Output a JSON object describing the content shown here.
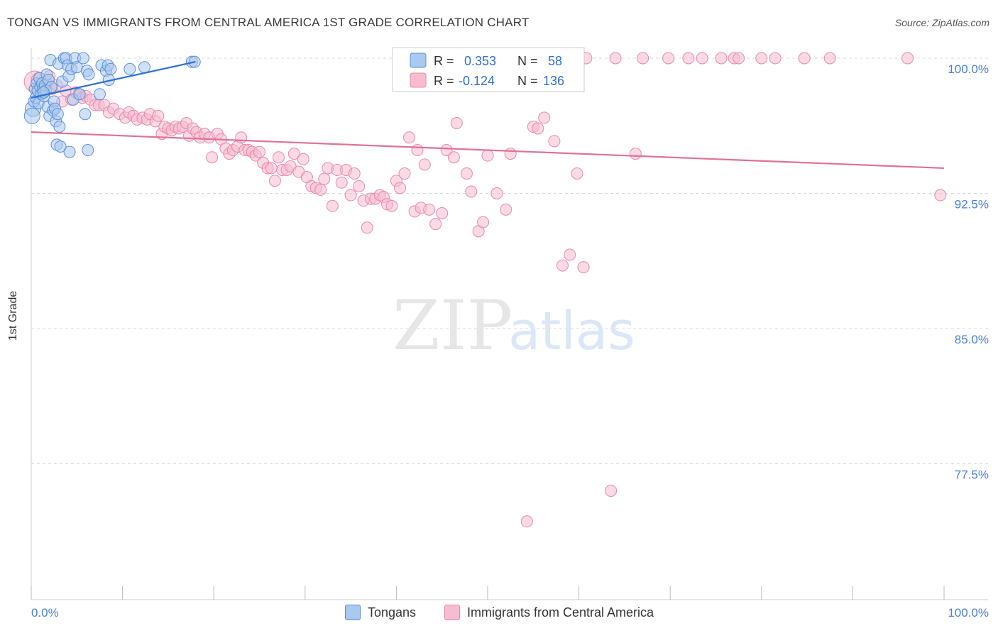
{
  "title": "TONGAN VS IMMIGRANTS FROM CENTRAL AMERICA 1ST GRADE CORRELATION CHART",
  "source": "Source: ZipAtlas.com",
  "watermark": {
    "zip": "ZIP",
    "atlas": "atlas"
  },
  "stats": [
    {
      "r_label": "R = ",
      "r_value": "0.353",
      "n_label": "N = ",
      "n_value": "58"
    },
    {
      "r_label": "R = ",
      "r_value": "-0.124",
      "n_label": "N = ",
      "n_value": "136"
    }
  ],
  "colors": {
    "tongans_fill": "#a9c9ee",
    "tongans_stroke": "#5b8fd6",
    "tongans_line": "#2e6fd0",
    "cam_fill": "#f7bcd0",
    "cam_stroke": "#e58aab",
    "cam_line": "#e07098",
    "tick_label": "#4a7fd4",
    "grid": "#d8d8d8"
  },
  "chart_data": {
    "type": "scatter",
    "title": "TONGAN VS IMMIGRANTS FROM CENTRAL AMERICA 1ST GRADE CORRELATION CHART",
    "xlabel": "",
    "ylabel": "1st Grade",
    "xlim": [
      0,
      100
    ],
    "ylim": [
      70.0,
      100.8
    ],
    "x_tick_labels": [
      "0.0%",
      "100.0%"
    ],
    "y_ticks": [
      77.5,
      85.0,
      92.5,
      100.0
    ],
    "y_tick_labels": [
      "77.5%",
      "85.0%",
      "92.5%",
      "100.0%"
    ],
    "legend": [
      "Tongans",
      "Immigrants from Central America"
    ],
    "series": [
      {
        "name": "Tongans",
        "r": 0.353,
        "n": 58,
        "trend": {
          "x": [
            0,
            18
          ],
          "y": [
            97.8,
            99.8
          ]
        },
        "points": [
          [
            0.2,
            97.2
          ],
          [
            0.3,
            97.6
          ],
          [
            0.4,
            98.3
          ],
          [
            0.5,
            97.8
          ],
          [
            0.6,
            98.6
          ],
          [
            0.7,
            98.2
          ],
          [
            0.8,
            97.5
          ],
          [
            0.9,
            98.9
          ],
          [
            1.0,
            98.4
          ],
          [
            1.1,
            98.0
          ],
          [
            1.2,
            98.6
          ],
          [
            1.3,
            98.3
          ],
          [
            1.4,
            97.9
          ],
          [
            1.5,
            98.5
          ],
          [
            1.6,
            98.2
          ],
          [
            1.7,
            99.1
          ],
          [
            1.8,
            97.3
          ],
          [
            1.9,
            98.8
          ],
          [
            2.0,
            96.8
          ],
          [
            2.1,
            99.9
          ],
          [
            2.2,
            98.4
          ],
          [
            2.4,
            97.1
          ],
          [
            2.5,
            97.6
          ],
          [
            2.6,
            97.2
          ],
          [
            2.7,
            96.5
          ],
          [
            2.8,
            95.2
          ],
          [
            2.9,
            96.9
          ],
          [
            3.0,
            99.7
          ],
          [
            3.1,
            96.2
          ],
          [
            3.2,
            95.1
          ],
          [
            3.4,
            98.7
          ],
          [
            3.6,
            100.0
          ],
          [
            3.8,
            100.0
          ],
          [
            4.0,
            99.6
          ],
          [
            4.1,
            99.0
          ],
          [
            4.2,
            94.8
          ],
          [
            4.4,
            99.4
          ],
          [
            4.6,
            97.7
          ],
          [
            4.8,
            100.0
          ],
          [
            5.0,
            99.5
          ],
          [
            5.3,
            98.0
          ],
          [
            5.7,
            100.0
          ],
          [
            5.9,
            96.9
          ],
          [
            6.1,
            99.3
          ],
          [
            6.2,
            94.9
          ],
          [
            6.3,
            99.1
          ],
          [
            7.5,
            98.0
          ],
          [
            7.7,
            99.6
          ],
          [
            8.2,
            99.3
          ],
          [
            8.4,
            99.6
          ],
          [
            8.5,
            98.8
          ],
          [
            8.7,
            99.4
          ],
          [
            10.8,
            99.4
          ],
          [
            12.4,
            99.5
          ],
          [
            17.6,
            99.8
          ],
          [
            17.9,
            99.8
          ],
          [
            0.1,
            96.8
          ],
          [
            1.35,
            98.1
          ]
        ],
        "sizes": {
          "0": 22,
          "3": 16,
          "10": 16,
          "56": 22
        }
      },
      {
        "name": "Immigrants from Central America",
        "r": -0.124,
        "n": 136,
        "trend": {
          "x": [
            0,
            100
          ],
          "y": [
            95.9,
            93.9
          ]
        },
        "points": [
          [
            0.4,
            98.7
          ],
          [
            0.8,
            98.8
          ],
          [
            1.3,
            98.1
          ],
          [
            1.7,
            98.6
          ],
          [
            2.0,
            99.0
          ],
          [
            2.3,
            98.3
          ],
          [
            2.8,
            98.5
          ],
          [
            3.4,
            97.6
          ],
          [
            3.8,
            98.2
          ],
          [
            4.4,
            97.7
          ],
          [
            4.9,
            98.1
          ],
          [
            5.2,
            98.0
          ],
          [
            5.6,
            97.8
          ],
          [
            6.0,
            97.9
          ],
          [
            6.5,
            97.7
          ],
          [
            7.0,
            97.4
          ],
          [
            7.4,
            97.4
          ],
          [
            8.0,
            97.4
          ],
          [
            8.5,
            97.0
          ],
          [
            9.0,
            97.2
          ],
          [
            9.7,
            96.9
          ],
          [
            10.3,
            96.7
          ],
          [
            10.7,
            97.0
          ],
          [
            11.2,
            96.8
          ],
          [
            11.6,
            96.6
          ],
          [
            12.2,
            96.7
          ],
          [
            12.7,
            96.6
          ],
          [
            13.0,
            96.9
          ],
          [
            13.6,
            96.5
          ],
          [
            13.9,
            96.8
          ],
          [
            14.3,
            95.8
          ],
          [
            14.6,
            96.2
          ],
          [
            15.0,
            96.1
          ],
          [
            15.4,
            96.0
          ],
          [
            15.8,
            96.2
          ],
          [
            16.2,
            96.1
          ],
          [
            16.6,
            96.2
          ],
          [
            17.0,
            96.4
          ],
          [
            17.3,
            95.7
          ],
          [
            17.7,
            96.1
          ],
          [
            18.1,
            95.9
          ],
          [
            18.5,
            95.6
          ],
          [
            19.0,
            95.8
          ],
          [
            19.5,
            95.6
          ],
          [
            19.8,
            94.5
          ],
          [
            20.4,
            95.8
          ],
          [
            20.8,
            95.5
          ],
          [
            21.3,
            95.0
          ],
          [
            21.7,
            94.7
          ],
          [
            22.1,
            94.9
          ],
          [
            22.6,
            95.1
          ],
          [
            23.0,
            95.6
          ],
          [
            23.4,
            94.9
          ],
          [
            23.8,
            94.9
          ],
          [
            24.2,
            94.8
          ],
          [
            24.6,
            94.6
          ],
          [
            25.0,
            94.8
          ],
          [
            25.4,
            94.2
          ],
          [
            25.9,
            93.9
          ],
          [
            26.3,
            93.9
          ],
          [
            26.7,
            93.2
          ],
          [
            27.1,
            94.5
          ],
          [
            27.5,
            93.8
          ],
          [
            28.0,
            93.8
          ],
          [
            28.4,
            94.0
          ],
          [
            28.8,
            94.7
          ],
          [
            29.3,
            93.7
          ],
          [
            29.8,
            94.4
          ],
          [
            30.2,
            93.4
          ],
          [
            30.7,
            92.9
          ],
          [
            31.2,
            92.8
          ],
          [
            31.7,
            92.7
          ],
          [
            32.1,
            93.3
          ],
          [
            32.5,
            93.9
          ],
          [
            33.0,
            91.8
          ],
          [
            33.5,
            93.8
          ],
          [
            34.0,
            93.1
          ],
          [
            34.5,
            93.8
          ],
          [
            35.0,
            92.4
          ],
          [
            35.4,
            93.6
          ],
          [
            35.9,
            92.9
          ],
          [
            36.4,
            92.1
          ],
          [
            36.8,
            90.6
          ],
          [
            37.2,
            92.2
          ],
          [
            37.7,
            92.2
          ],
          [
            38.2,
            92.4
          ],
          [
            38.6,
            92.3
          ],
          [
            39.0,
            91.9
          ],
          [
            39.5,
            91.8
          ],
          [
            40.0,
            93.2
          ],
          [
            40.4,
            92.8
          ],
          [
            40.9,
            93.6
          ],
          [
            41.4,
            95.6
          ],
          [
            42.0,
            91.5
          ],
          [
            42.3,
            94.9
          ],
          [
            42.7,
            91.7
          ],
          [
            43.1,
            94.1
          ],
          [
            43.6,
            91.6
          ],
          [
            44.3,
            90.8
          ],
          [
            45.0,
            91.4
          ],
          [
            45.5,
            94.9
          ],
          [
            46.3,
            94.5
          ],
          [
            46.6,
            96.4
          ],
          [
            46.7,
            100.0
          ],
          [
            47.7,
            93.6
          ],
          [
            48.2,
            92.6
          ],
          [
            49.0,
            90.4
          ],
          [
            49.5,
            90.9
          ],
          [
            50.0,
            94.6
          ],
          [
            51.0,
            92.5
          ],
          [
            51.3,
            100.0
          ],
          [
            52.0,
            91.6
          ],
          [
            52.5,
            94.7
          ],
          [
            53.2,
            100.0
          ],
          [
            54.3,
            74.3
          ],
          [
            55.0,
            96.2
          ],
          [
            55.5,
            96.1
          ],
          [
            56.2,
            96.7
          ],
          [
            56.5,
            100.0
          ],
          [
            57.3,
            95.4
          ],
          [
            58.2,
            88.5
          ],
          [
            59.0,
            89.1
          ],
          [
            59.8,
            93.6
          ],
          [
            60.5,
            88.4
          ],
          [
            63.5,
            76.0
          ],
          [
            64.0,
            100.0
          ],
          [
            67.0,
            100.0
          ],
          [
            69.8,
            100.0
          ],
          [
            72.0,
            100.0
          ],
          [
            73.5,
            100.0
          ],
          [
            75.6,
            100.0
          ],
          [
            77.0,
            100.0
          ],
          [
            80.0,
            100.0
          ],
          [
            84.7,
            100.0
          ],
          [
            87.5,
            100.0
          ],
          [
            96.0,
            100.0
          ],
          [
            99.6,
            92.4
          ],
          [
            60.8,
            100.0
          ],
          [
            66.2,
            94.7
          ],
          [
            77.5,
            100.0
          ],
          [
            81.5,
            100.0
          ]
        ],
        "sizes": {
          "0": 30,
          "1": 20,
          "2": 18
        }
      }
    ]
  }
}
